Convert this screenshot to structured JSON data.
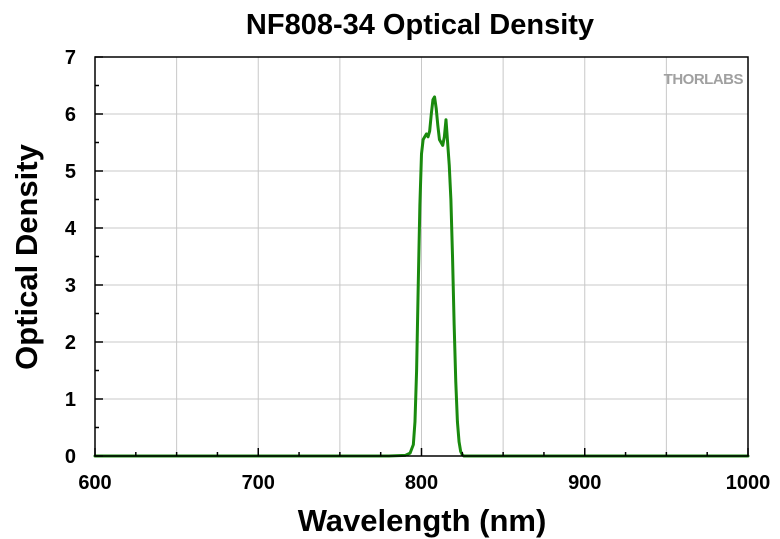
{
  "chart_data": {
    "type": "line",
    "title": "NF808-34 Optical Density",
    "xlabel": "Wavelength (nm)",
    "ylabel": "Optical Density",
    "xlim": [
      600,
      1000
    ],
    "ylim": [
      0,
      7
    ],
    "x_ticks": [
      600,
      700,
      800,
      900,
      1000
    ],
    "x_tick_labels": [
      "600",
      "700",
      "800",
      "900",
      "1000"
    ],
    "y_ticks": [
      0,
      1,
      2,
      3,
      4,
      5,
      6,
      7
    ],
    "y_tick_labels": [
      "0",
      "1",
      "2",
      "3",
      "4",
      "5",
      "6",
      "7"
    ],
    "grid": true,
    "legend": "none",
    "watermark": "THORLABS",
    "colors": {
      "series": "#1a8a0e",
      "grid": "#c8c8c8",
      "axis": "#000000",
      "watermark": "#a0a0a0"
    },
    "series": [
      {
        "x": [
          600,
          780,
          790,
          793,
          795,
          796,
          797,
          798,
          799,
          800,
          801,
          802,
          803,
          804,
          805,
          806,
          807,
          808,
          809,
          810,
          811,
          812,
          813,
          814,
          815,
          816,
          817,
          818,
          819,
          820,
          821,
          822,
          823,
          824,
          825,
          826,
          830,
          1000
        ],
        "y": [
          0,
          0,
          0.01,
          0.05,
          0.2,
          0.6,
          1.5,
          3.0,
          4.4,
          5.3,
          5.55,
          5.6,
          5.65,
          5.6,
          5.7,
          6.0,
          6.25,
          6.3,
          6.1,
          5.8,
          5.55,
          5.5,
          5.45,
          5.6,
          5.9,
          5.5,
          5.1,
          4.5,
          3.5,
          2.3,
          1.3,
          0.6,
          0.25,
          0.08,
          0.02,
          0,
          0,
          0
        ]
      }
    ]
  }
}
